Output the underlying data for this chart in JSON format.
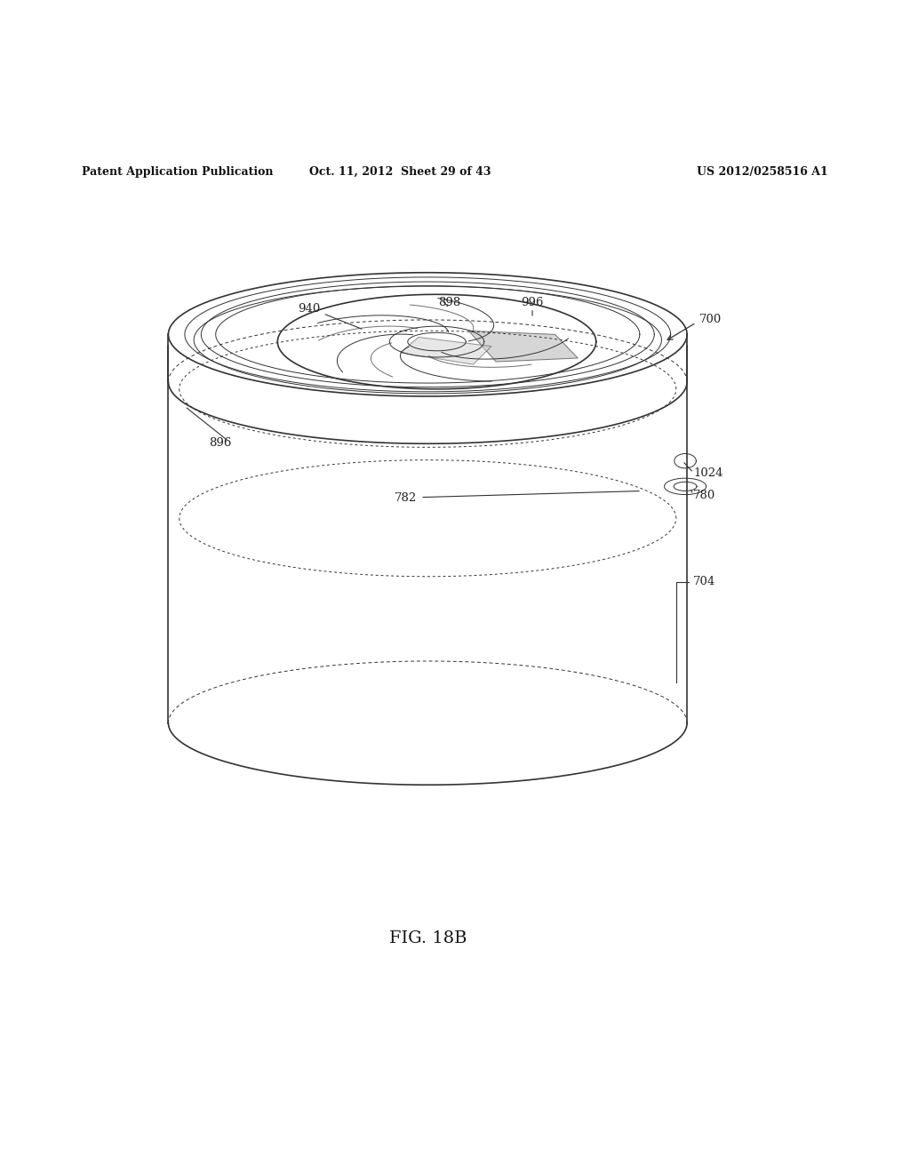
{
  "title": "FIG. 18B",
  "header_left": "Patent Application Publication",
  "header_mid": "Oct. 11, 2012  Sheet 29 of 43",
  "header_right": "US 2012/0258516 A1",
  "background": "#ffffff",
  "line_color": "#333333",
  "light_gray": "#bbbbbb",
  "mid_gray": "#888888"
}
